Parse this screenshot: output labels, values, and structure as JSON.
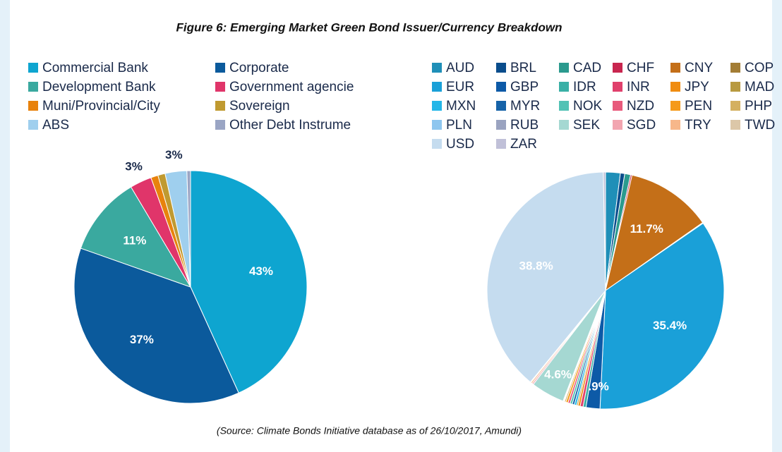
{
  "title": "Figure 6: Emerging Market Green Bond Issuer/Currency Breakdown",
  "source": "(Source: Climate Bonds Initiative database as of 26/10/2017, Amundi)",
  "chart_data": [
    {
      "type": "pie",
      "categories": [
        "Commercial Bank",
        "Corporate",
        "Development Bank",
        "Government agencie",
        "Muni/Provincial/City",
        "Sovereign",
        "ABS",
        "Other Debt Instrume"
      ],
      "values": [
        43,
        37,
        11,
        3,
        1,
        1,
        3,
        0.5
      ],
      "value_labels": [
        "43%",
        "37%",
        "11%",
        "3%",
        null,
        null,
        "3%",
        null
      ],
      "colors": [
        "#0ea5d0",
        "#0b5a9c",
        "#3aa99f",
        "#e0356a",
        "#e8820c",
        "#c09a30",
        "#9fcfee",
        "#9aa5c4"
      ],
      "legend": "top-left"
    },
    {
      "type": "pie",
      "categories": [
        "AUD",
        "BRL",
        "CAD",
        "CHF",
        "CNY",
        "COP",
        "EUR",
        "GBP",
        "IDR",
        "INR",
        "JPY",
        "MAD",
        "MXN",
        "MYR",
        "NOK",
        "NZD",
        "PEN",
        "PHP",
        "PLN",
        "RUB",
        "SEK",
        "SGD",
        "TRY",
        "TWD",
        "USD",
        "ZAR"
      ],
      "values": [
        2,
        0.6,
        0.8,
        0.2,
        11.7,
        0.1,
        35.4,
        1.9,
        0.4,
        0.4,
        0.3,
        0.2,
        0.3,
        0.3,
        0.3,
        0.3,
        0.3,
        0.2,
        0.1,
        0.1,
        4.6,
        0.2,
        0.2,
        0.1,
        38.8,
        0.3
      ],
      "value_labels": [
        null,
        null,
        null,
        null,
        "11.7%",
        null,
        "35.4%",
        "1.9%",
        null,
        null,
        null,
        null,
        null,
        null,
        null,
        null,
        null,
        null,
        null,
        null,
        "4.6%",
        null,
        null,
        null,
        "38.8%",
        null
      ],
      "colors": [
        "#1f8fb8",
        "#0a4d8c",
        "#2b9a8e",
        "#c8264f",
        "#c46f18",
        "#a37d35",
        "#1aa0d8",
        "#0d5aa7",
        "#3ab0a6",
        "#e0406c",
        "#f08c10",
        "#b89a40",
        "#23b6e8",
        "#1663a8",
        "#52c2b5",
        "#e85a7c",
        "#f59a1a",
        "#d4b060",
        "#8ec6ef",
        "#9aa3c0",
        "#a5d8d2",
        "#f2a5b0",
        "#f7b78a",
        "#dcc7a8",
        "#c5dcef",
        "#c0c0d8"
      ],
      "legend": "top-right"
    }
  ]
}
